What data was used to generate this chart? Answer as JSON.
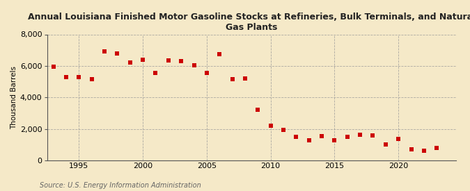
{
  "title": "Annual Louisiana Finished Motor Gasoline Stocks at Refineries, Bulk Terminals, and Natural\nGas Plants",
  "ylabel": "Thousand Barrels",
  "source": "Source: U.S. Energy Information Administration",
  "background_color": "#f5e9c8",
  "plot_background_color": "#f5e9c8",
  "marker_color": "#cc0000",
  "marker": "s",
  "marker_size": 4,
  "years": [
    1993,
    1994,
    1995,
    1996,
    1997,
    1998,
    1999,
    2000,
    2001,
    2002,
    2003,
    2004,
    2005,
    2006,
    2007,
    2008,
    2009,
    2010,
    2011,
    2012,
    2013,
    2014,
    2015,
    2016,
    2017,
    2018,
    2019,
    2020,
    2021,
    2022,
    2023
  ],
  "values": [
    5950,
    5300,
    5280,
    5150,
    6900,
    6800,
    6200,
    6400,
    5550,
    6350,
    6300,
    6050,
    5550,
    6750,
    5150,
    5200,
    3200,
    2200,
    1950,
    1500,
    1300,
    1550,
    1300,
    1500,
    1650,
    1600,
    1000,
    1350,
    700,
    620,
    800
  ],
  "xlim": [
    1992.5,
    2024.5
  ],
  "ylim": [
    0,
    8000
  ],
  "yticks": [
    0,
    2000,
    4000,
    6000,
    8000
  ],
  "xticks": [
    1995,
    2000,
    2005,
    2010,
    2015,
    2020
  ],
  "grid_color": "#999999",
  "grid_style": "--",
  "grid_alpha": 0.8,
  "title_fontsize": 9,
  "tick_fontsize": 8,
  "ylabel_fontsize": 7.5,
  "source_fontsize": 7
}
